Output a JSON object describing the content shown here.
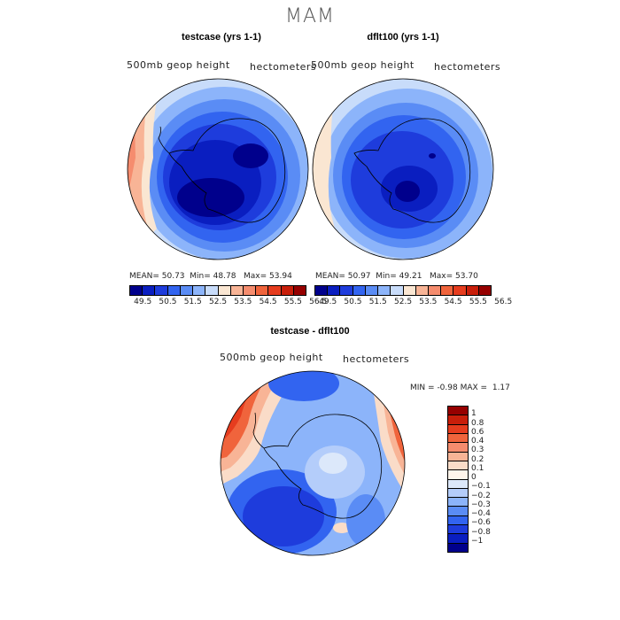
{
  "title": "MAM",
  "panels": [
    {
      "title": "testcase (yrs 1-1)",
      "left_label": "500mb geop height",
      "right_label": "hectometers",
      "mean_label": "MEAN=",
      "mean": "50.73",
      "min_label": "Min=",
      "min": "48.78",
      "max_label": "Max=",
      "max": "53.94"
    },
    {
      "title": "dflt100 (yrs 1-1)",
      "left_label": "500mb geop height",
      "right_label": "hectometers",
      "mean_label": "MEAN=",
      "mean": "50.97",
      "min_label": "Min=",
      "min": "49.21",
      "max_label": "Max=",
      "max": "53.70"
    }
  ],
  "shared_colorbar": {
    "labels": [
      "49.5",
      "50.5",
      "51.5",
      "52.5",
      "53.5",
      "54.5",
      "55.5",
      "56.5"
    ],
    "colors": [
      "#00008c",
      "#0a1ec0",
      "#1e3cdc",
      "#3264f0",
      "#5a8cf5",
      "#8cb4fa",
      "#c8dcfa",
      "#fae6d2",
      "#f8b496",
      "#f58c6e",
      "#f0643c",
      "#e63c1e",
      "#c81e0a",
      "#960000"
    ]
  },
  "diff_panel": {
    "title": "testcase - dflt100",
    "left_label": "500mb geop height",
    "right_label": "hectometers",
    "min_label": "MIN =",
    "min": "-0.98",
    "max_label": "MAX =",
    "max": "1.17",
    "colorbar_labels": [
      "1",
      "0.8",
      "0.6",
      "0.4",
      "0.3",
      "0.2",
      "0.1",
      "0",
      "−0.1",
      "−0.2",
      "−0.3",
      "−0.4",
      "−0.6",
      "−0.8",
      "−1"
    ],
    "colorbar_colors": [
      "#960000",
      "#c81e0a",
      "#e63c1e",
      "#f0643c",
      "#f58c6e",
      "#f8b496",
      "#fadcc8",
      "#fff5eb",
      "#dce8fa",
      "#b4cdfa",
      "#8cb4fa",
      "#5a8cf5",
      "#3264f0",
      "#1e3cdc",
      "#0a1ec0",
      "#00008c"
    ]
  }
}
